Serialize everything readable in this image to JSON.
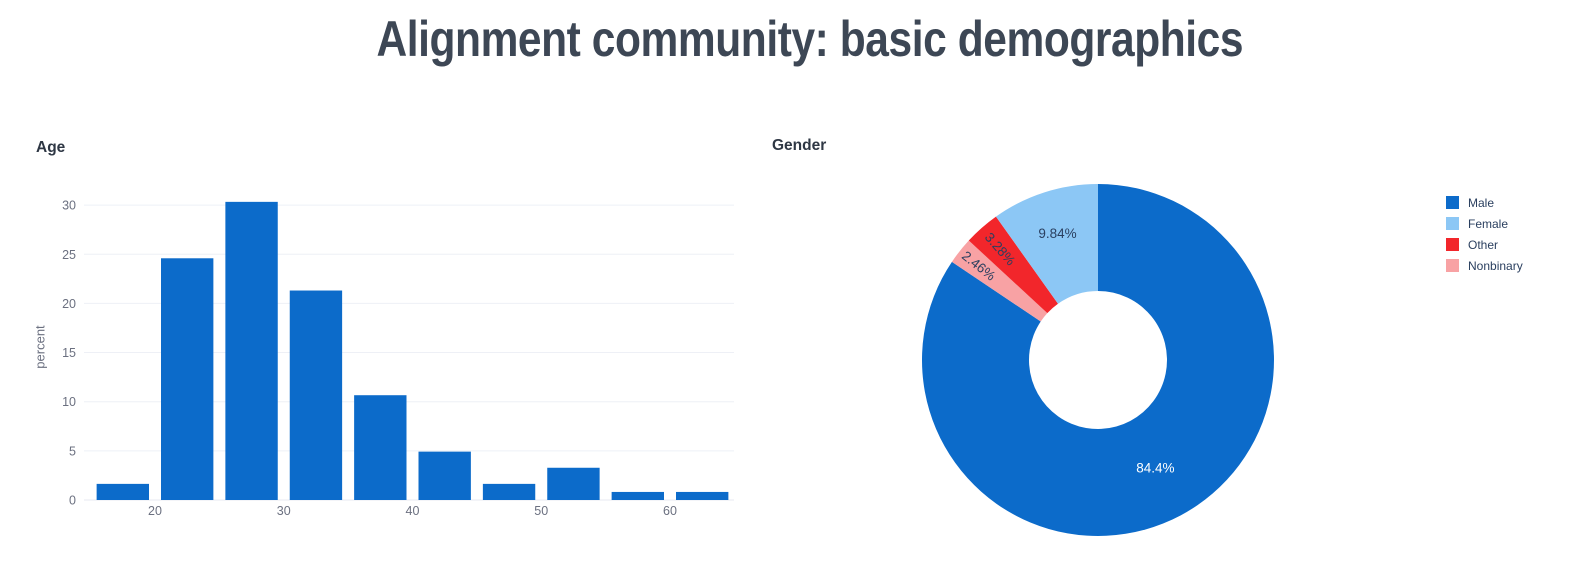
{
  "page": {
    "title": "Alignment community: basic demographics"
  },
  "colors": {
    "male_blue": "#0c6bca",
    "female_light_blue": "#8cc7f5",
    "other_red": "#f2262b",
    "nonbinary_pink": "#f8a2a4",
    "page_title": "#3d4755",
    "chart_title": "#2e3744",
    "tick_gray": "#6b7080",
    "gridline": "#eef0f6",
    "axis_line": "#e7e9f0",
    "slice_label_dark": "#2a3f5f",
    "slice_label_light": "#ffffff"
  },
  "chart_data": [
    {
      "type": "bar",
      "variant": "histogram",
      "title": "Age",
      "xlabel": "",
      "ylabel": "percent",
      "bin_edges": [
        15,
        20,
        25,
        30,
        35,
        40,
        45,
        50,
        55,
        60,
        65
      ],
      "values": [
        1.64,
        24.59,
        30.33,
        21.31,
        10.66,
        4.92,
        1.64,
        3.28,
        0.82,
        0.82
      ],
      "x_ticks": [
        20,
        30,
        40,
        50,
        60
      ],
      "y_ticks": [
        0,
        5,
        10,
        15,
        20,
        25,
        30
      ],
      "xlim": [
        14.5,
        65.5
      ],
      "ylim": [
        0,
        32
      ],
      "grid": true,
      "bar_color": "#0c6bca",
      "legend_position": "none"
    },
    {
      "type": "pie",
      "title": "Gender",
      "hole": 0.39,
      "legend_position": "right",
      "legend": [
        "Male",
        "Female",
        "Other",
        "Nonbinary"
      ],
      "slices_clockwise_from_top": [
        {
          "label": "Male",
          "value": 84.4,
          "text": "84.4%",
          "color": "#0c6bca",
          "text_color": "#ffffff",
          "label_radius": 122,
          "tangential_text": false
        },
        {
          "label": "Nonbinary",
          "value": 2.46,
          "text": "2.46%",
          "color": "#f8a2a4",
          "text_color": "#2a3f5f",
          "label_radius": 152,
          "tangential_text": true
        },
        {
          "label": "Other",
          "value": 3.28,
          "text": "3.28%",
          "color": "#f2262b",
          "text_color": "#2a3f5f",
          "label_radius": 148,
          "tangential_text": true
        },
        {
          "label": "Female",
          "value": 9.84,
          "text": "9.84%",
          "color": "#8cc7f5",
          "text_color": "#2a3f5f",
          "label_radius": 133,
          "tangential_text": false
        }
      ]
    }
  ]
}
